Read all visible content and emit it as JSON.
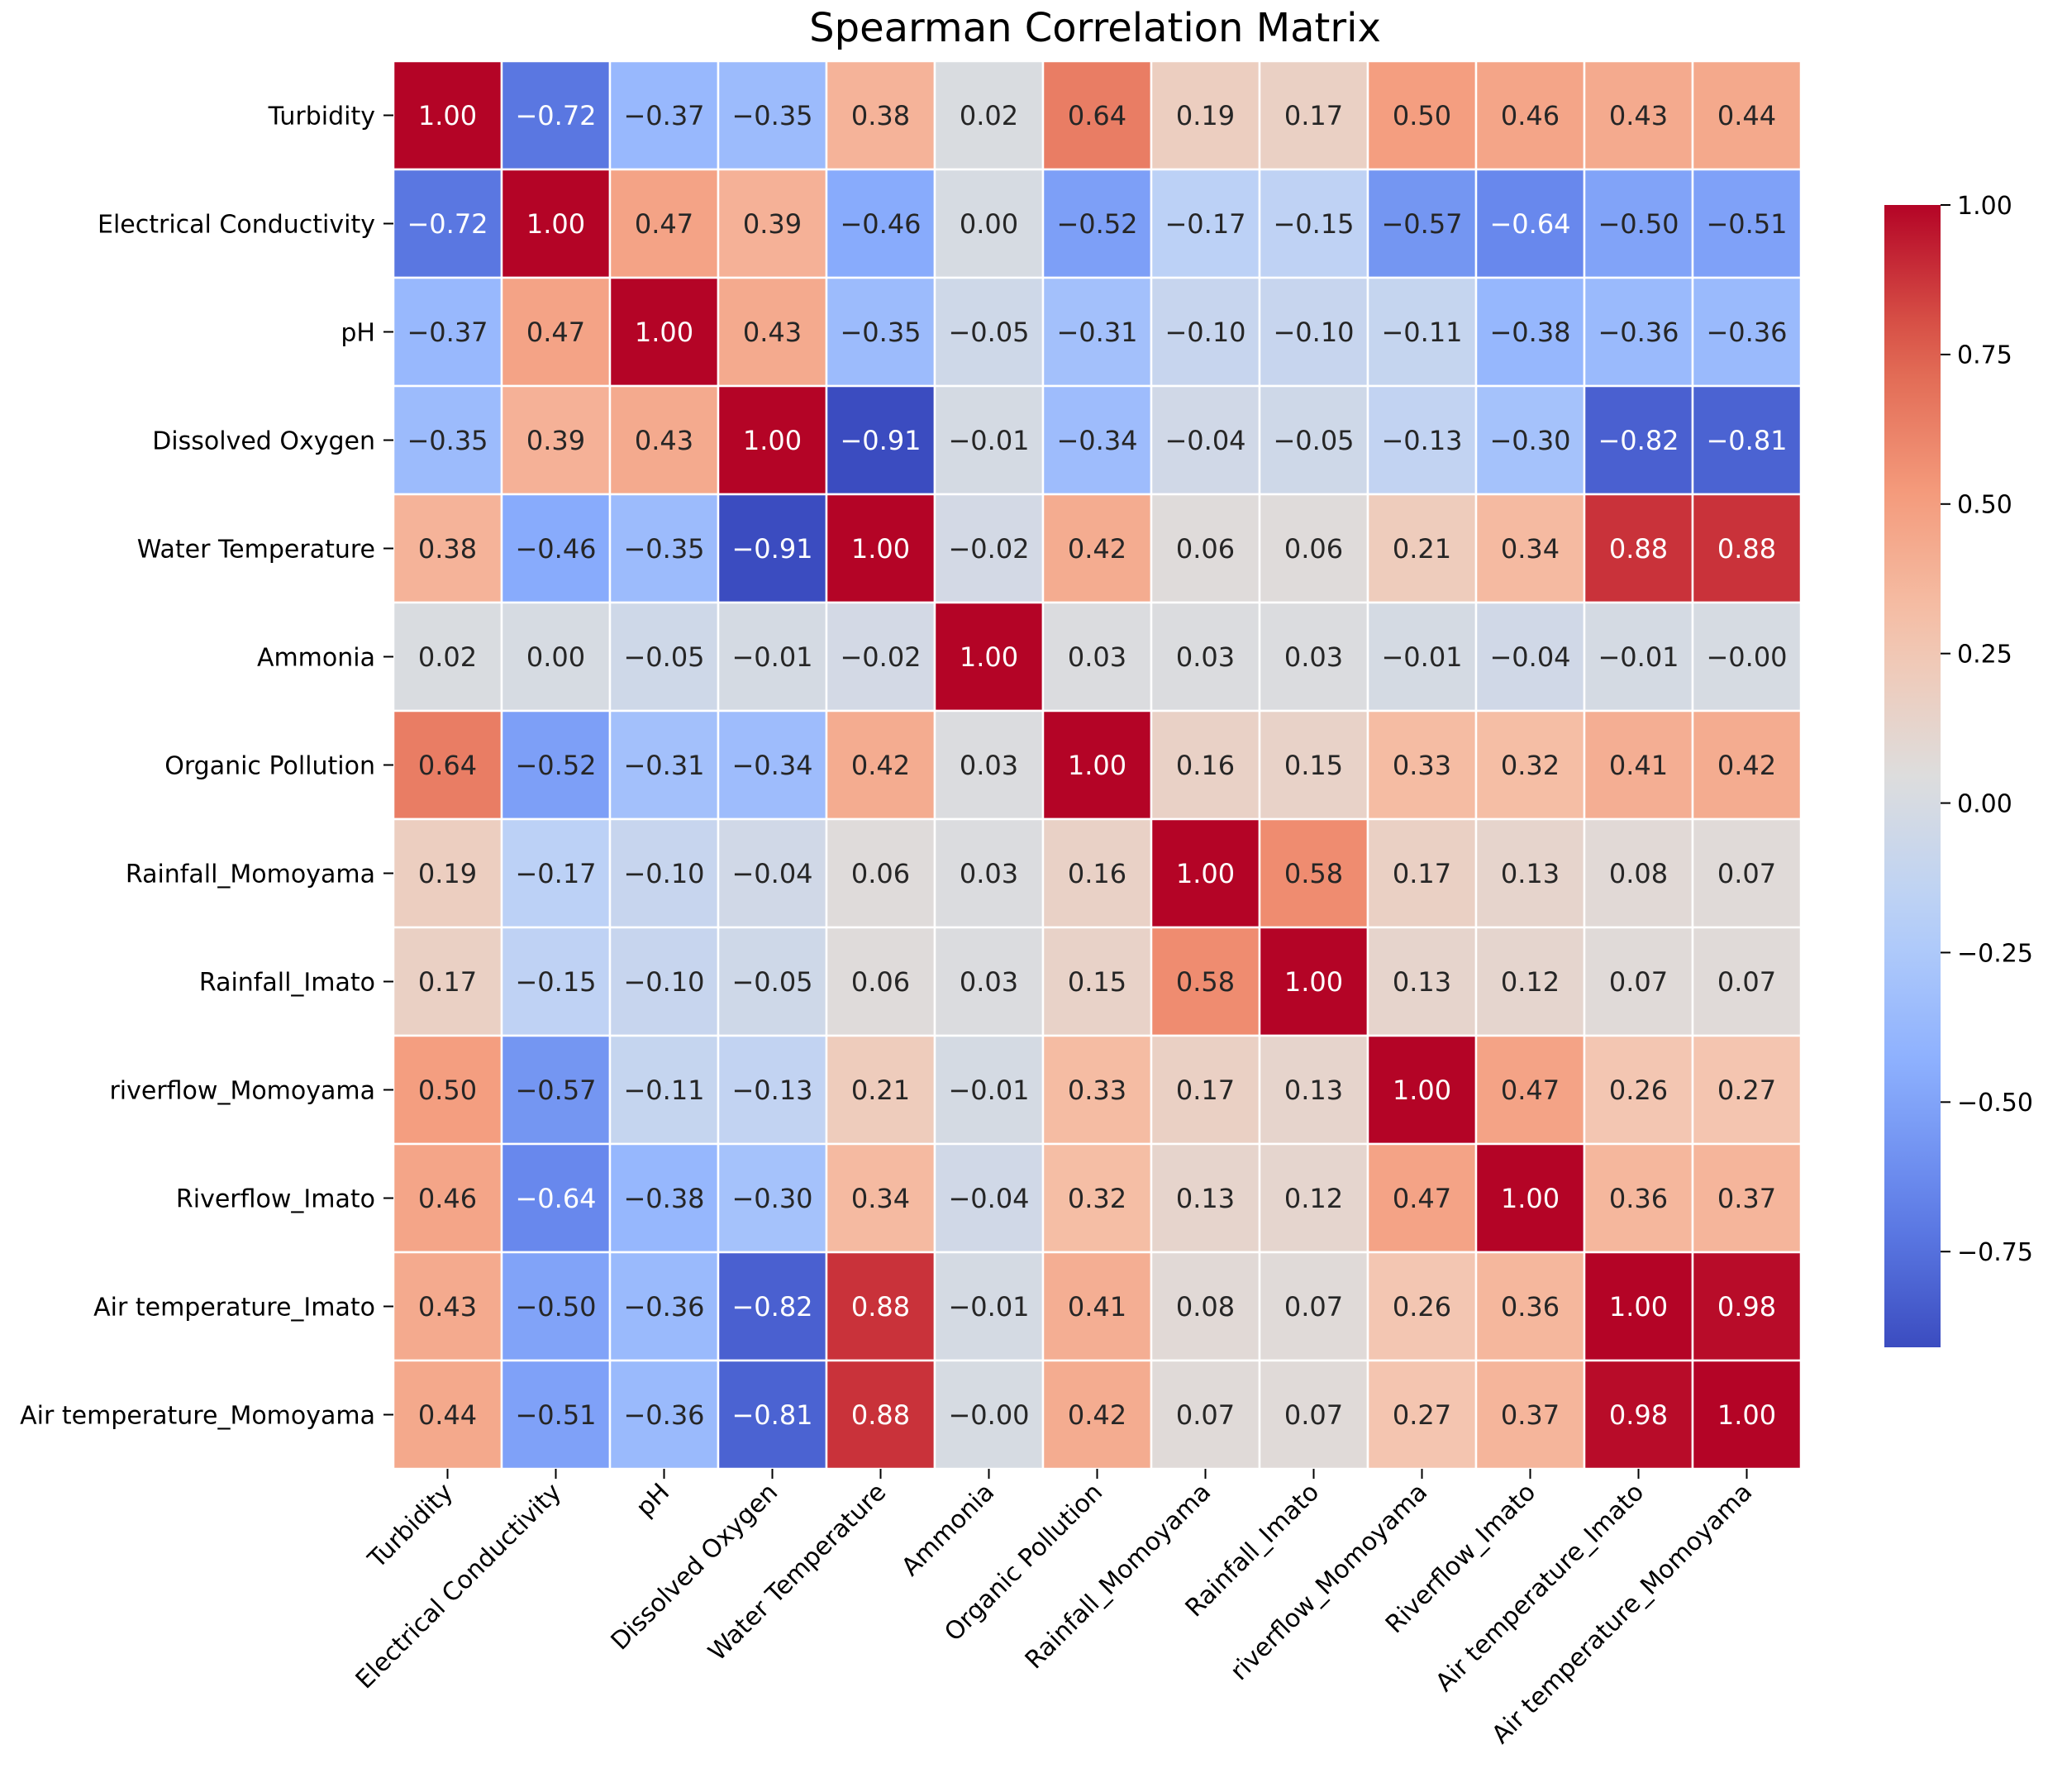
{
  "chart_data": {
    "type": "heatmap",
    "title": "Spearman Correlation Matrix",
    "xlabel": "",
    "ylabel": "",
    "variables": [
      "Turbidity",
      "Electrical Conductivity",
      "pH",
      "Dissolved Oxygen",
      "Water Temperature",
      "Ammonia",
      "Organic Pollution",
      "Rainfall_Momoyama",
      "Rainfall_Imato",
      "riverflow_Momoyama",
      "Riverflow_Imato",
      "Air temperature_Imato",
      "Air temperature_Momoyama"
    ],
    "matrix": [
      [
        1.0,
        -0.72,
        -0.37,
        -0.35,
        0.38,
        0.02,
        0.64,
        0.19,
        0.17,
        0.5,
        0.46,
        0.43,
        0.44
      ],
      [
        -0.72,
        1.0,
        0.47,
        0.39,
        -0.46,
        0.0,
        -0.52,
        -0.17,
        -0.15,
        -0.57,
        -0.64,
        -0.5,
        -0.51
      ],
      [
        -0.37,
        0.47,
        1.0,
        0.43,
        -0.35,
        -0.05,
        -0.31,
        -0.1,
        -0.1,
        -0.11,
        -0.38,
        -0.36,
        -0.36
      ],
      [
        -0.35,
        0.39,
        0.43,
        1.0,
        -0.91,
        -0.01,
        -0.34,
        -0.04,
        -0.05,
        -0.13,
        -0.3,
        -0.82,
        -0.81
      ],
      [
        0.38,
        -0.46,
        -0.35,
        -0.91,
        1.0,
        -0.02,
        0.42,
        0.06,
        0.06,
        0.21,
        0.34,
        0.88,
        0.88
      ],
      [
        0.02,
        0.0,
        -0.05,
        -0.01,
        -0.02,
        1.0,
        0.03,
        0.03,
        0.03,
        -0.01,
        -0.04,
        -0.01,
        -0.0
      ],
      [
        0.64,
        -0.52,
        -0.31,
        -0.34,
        0.42,
        0.03,
        1.0,
        0.16,
        0.15,
        0.33,
        0.32,
        0.41,
        0.42
      ],
      [
        0.19,
        -0.17,
        -0.1,
        -0.04,
        0.06,
        0.03,
        0.16,
        1.0,
        0.58,
        0.17,
        0.13,
        0.08,
        0.07
      ],
      [
        0.17,
        -0.15,
        -0.1,
        -0.05,
        0.06,
        0.03,
        0.15,
        0.58,
        1.0,
        0.13,
        0.12,
        0.07,
        0.07
      ],
      [
        0.5,
        -0.57,
        -0.11,
        -0.13,
        0.21,
        -0.01,
        0.33,
        0.17,
        0.13,
        1.0,
        0.47,
        0.26,
        0.27
      ],
      [
        0.46,
        -0.64,
        -0.38,
        -0.3,
        0.34,
        -0.04,
        0.32,
        0.13,
        0.12,
        0.47,
        1.0,
        0.36,
        0.37
      ],
      [
        0.43,
        -0.5,
        -0.36,
        -0.82,
        0.88,
        -0.01,
        0.41,
        0.08,
        0.07,
        0.26,
        0.36,
        1.0,
        0.98
      ],
      [
        0.44,
        -0.51,
        -0.36,
        -0.81,
        0.88,
        -0.0,
        0.42,
        0.07,
        0.07,
        0.27,
        0.37,
        0.98,
        1.0
      ]
    ],
    "colormap": "coolwarm",
    "vmin": -0.91,
    "vmax": 1.0,
    "colorbar_ticks": [
      1.0,
      0.75,
      0.5,
      0.25,
      0.0,
      -0.25,
      -0.5,
      -0.75
    ],
    "annot_format": "0.00",
    "grid": true,
    "legend": "colorbar right"
  }
}
